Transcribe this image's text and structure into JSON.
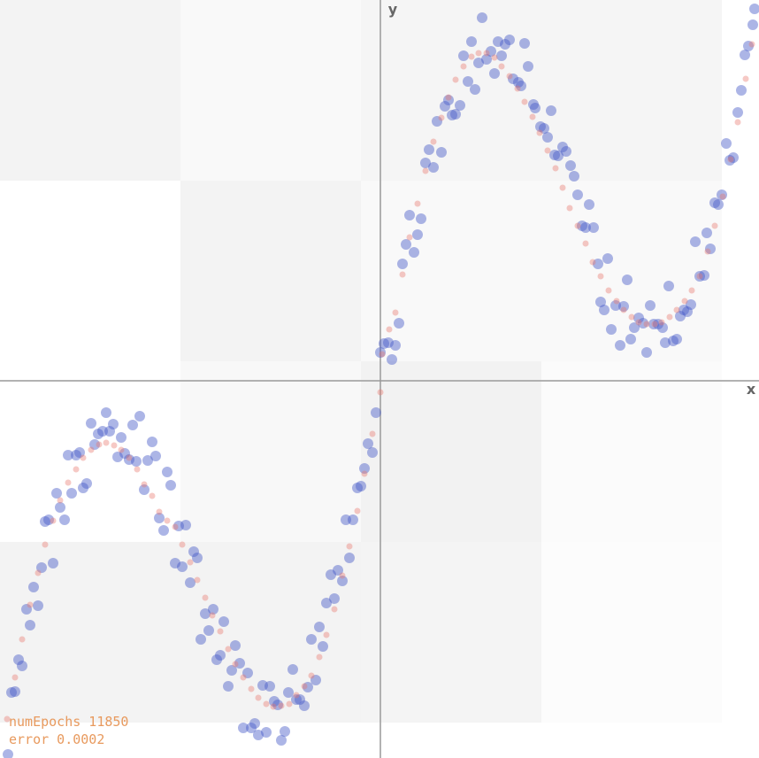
{
  "chart_data": {
    "type": "scatter",
    "x_label": "x",
    "y_label": "y",
    "xlim": [
      -430,
      428
    ],
    "ylim": [
      -426,
      430
    ],
    "series": [
      {
        "color": "rgba(70,90,200,0.45)",
        "x": [
          -421,
          -417,
          -413,
          -409,
          -405,
          -400,
          -396,
          -392,
          -387,
          -383,
          -379,
          -375,
          -370,
          -366,
          -362,
          -357,
          -353,
          -349,
          -344,
          -340,
          -336,
          -332,
          -327,
          -323,
          -319,
          -314,
          -310,
          -306,
          -302,
          -297,
          -293,
          -289,
          -284,
          -280,
          -276,
          -272,
          -267,
          -263,
          -258,
          -254,
          -250,
          -245,
          -241,
          -237,
          -232,
          -228,
          -224,
          -220,
          -215,
          -211,
          -207,
          -203,
          -198,
          -194,
          -189,
          -185,
          -181,
          -177,
          -172,
          -168,
          -164,
          -159,
          -155,
          -150,
          -146,
          -142,
          -138,
          -133,
          -129,
          -125,
          -120,
          -116,
          -112,
          -108,
          -104,
          -99,
          -95,
          -91,
          -86,
          -82,
          -78,
          -73,
          -69,
          -65,
          -61,
          -56,
          -52,
          -48,
          -43,
          -39,
          -35,
          -31,
          -26,
          -22,
          -18,
          -14,
          -9,
          -5,
          0,
          4,
          9,
          13,
          17,
          21,
          25,
          29,
          33,
          38,
          42,
          46,
          51,
          55,
          60,
          64,
          69,
          73,
          77,
          81,
          85,
          90,
          94,
          99,
          103,
          107,
          111,
          115,
          120,
          125,
          129,
          133,
          137,
          141,
          146,
          150,
          156,
          159,
          163,
          167,
          173,
          175,
          181,
          185,
          189,
          193,
          197,
          201,
          206,
          210,
          215,
          219,
          223,
          228,
          232,
          236,
          241,
          246,
          249,
          253,
          257,
          261,
          266,
          271,
          275,
          279,
          283,
          287,
          292,
          297,
          301,
          305,
          309,
          314,
          319,
          322,
          326,
          331,
          335,
          339,
          343,
          347,
          351,
          356,
          361,
          366,
          369,
          373,
          378,
          382,
          386,
          391,
          395,
          399,
          404,
          408,
          412,
          416,
          421,
          423
        ],
        "values": [
          -422,
          -352,
          -351,
          -315,
          -322,
          -258,
          -276,
          -233,
          -254,
          -211,
          -159,
          -157,
          -206,
          -127,
          -143,
          -157,
          -84,
          -127,
          -84,
          -81,
          -121,
          -116,
          -48,
          -72,
          -60,
          -57,
          -36,
          -57,
          -49,
          -86,
          -64,
          -82,
          -89,
          -50,
          -91,
          -40,
          -123,
          -90,
          -69,
          -85,
          -155,
          -169,
          -103,
          -118,
          -206,
          -164,
          -210,
          -163,
          -228,
          -193,
          -200,
          -292,
          -263,
          -282,
          -258,
          -315,
          -310,
          -272,
          -345,
          -327,
          -299,
          -319,
          -392,
          -330,
          -392,
          -387,
          -400,
          -344,
          -397,
          -345,
          -362,
          -366,
          -406,
          -396,
          -352,
          -326,
          -360,
          -360,
          -367,
          -346,
          -292,
          -338,
          -278,
          -300,
          -251,
          -219,
          -246,
          -214,
          -226,
          -157,
          -200,
          -157,
          -121,
          -119,
          -99,
          -71,
          -81,
          -36,
          32,
          42,
          43,
          24,
          40,
          65,
          132,
          154,
          187,
          145,
          165,
          183,
          246,
          261,
          241,
          293,
          258,
          310,
          317,
          300,
          301,
          311,
          367,
          338,
          383,
          329,
          359,
          410,
          363,
          372,
          347,
          383,
          367,
          380,
          385,
          341,
          337,
          333,
          381,
          355,
          312,
          308,
          287,
          285,
          275,
          305,
          255,
          254,
          264,
          259,
          243,
          231,
          210,
          175,
          173,
          199,
          173,
          132,
          89,
          80,
          138,
          58,
          85,
          40,
          84,
          114,
          47,
          60,
          71,
          65,
          32,
          85,
          64,
          64,
          60,
          43,
          107,
          45,
          47,
          73,
          80,
          78,
          86,
          157,
          118,
          119,
          167,
          149,
          201,
          199,
          210,
          268,
          249,
          252,
          303,
          328,
          368,
          378,
          402,
          420
        ]
      },
      {
        "color": "rgba(232,120,110,0.4)",
        "x": [
          -422,
          -413,
          -405,
          -396,
          -387,
          -379,
          -370,
          -362,
          -353,
          -344,
          -336,
          -327,
          -318,
          -310,
          -301,
          -293,
          -284,
          -275,
          -267,
          -258,
          -250,
          -241,
          -232,
          -224,
          -215,
          -207,
          -198,
          -190,
          -181,
          -172,
          -164,
          -155,
          -146,
          -138,
          -129,
          -121,
          -112,
          -103,
          -95,
          -86,
          -78,
          -69,
          -61,
          -52,
          -43,
          -35,
          -26,
          -18,
          -9,
          0,
          2,
          10,
          17,
          25,
          33,
          42,
          51,
          60,
          69,
          77,
          85,
          94,
          103,
          111,
          120,
          129,
          137,
          146,
          155,
          163,
          172,
          180,
          189,
          198,
          206,
          214,
          223,
          232,
          240,
          249,
          258,
          267,
          275,
          284,
          292,
          301,
          310,
          318,
          327,
          335,
          344,
          352,
          361,
          370,
          378,
          387,
          396,
          404,
          413,
          420
        ],
        "values": [
          -382,
          -335,
          -292,
          -253,
          -217,
          -185,
          -158,
          -135,
          -115,
          -100,
          -87,
          -78,
          -72,
          -70,
          -73,
          -78,
          -87,
          -100,
          -117,
          -130,
          -148,
          -158,
          -165,
          -185,
          -205,
          -225,
          -245,
          -265,
          -283,
          -303,
          -320,
          -335,
          -348,
          -358,
          -365,
          -368,
          -367,
          -365,
          -355,
          -345,
          -333,
          -312,
          -287,
          -258,
          -220,
          -187,
          -147,
          -105,
          -60,
          -13,
          30,
          58,
          77,
          120,
          162,
          200,
          237,
          270,
          297,
          320,
          340,
          355,
          366,
          370,
          370,
          365,
          355,
          344,
          330,
          315,
          298,
          280,
          260,
          240,
          218,
          195,
          175,
          155,
          134,
          118,
          102,
          90,
          80,
          72,
          66,
          64,
          64,
          66,
          72,
          80,
          90,
          102,
          118,
          146,
          175,
          208,
          250,
          292,
          341,
          380
        ]
      }
    ]
  },
  "status": {
    "epochs": "numEpochs 11850",
    "error": "error 0.0002"
  }
}
